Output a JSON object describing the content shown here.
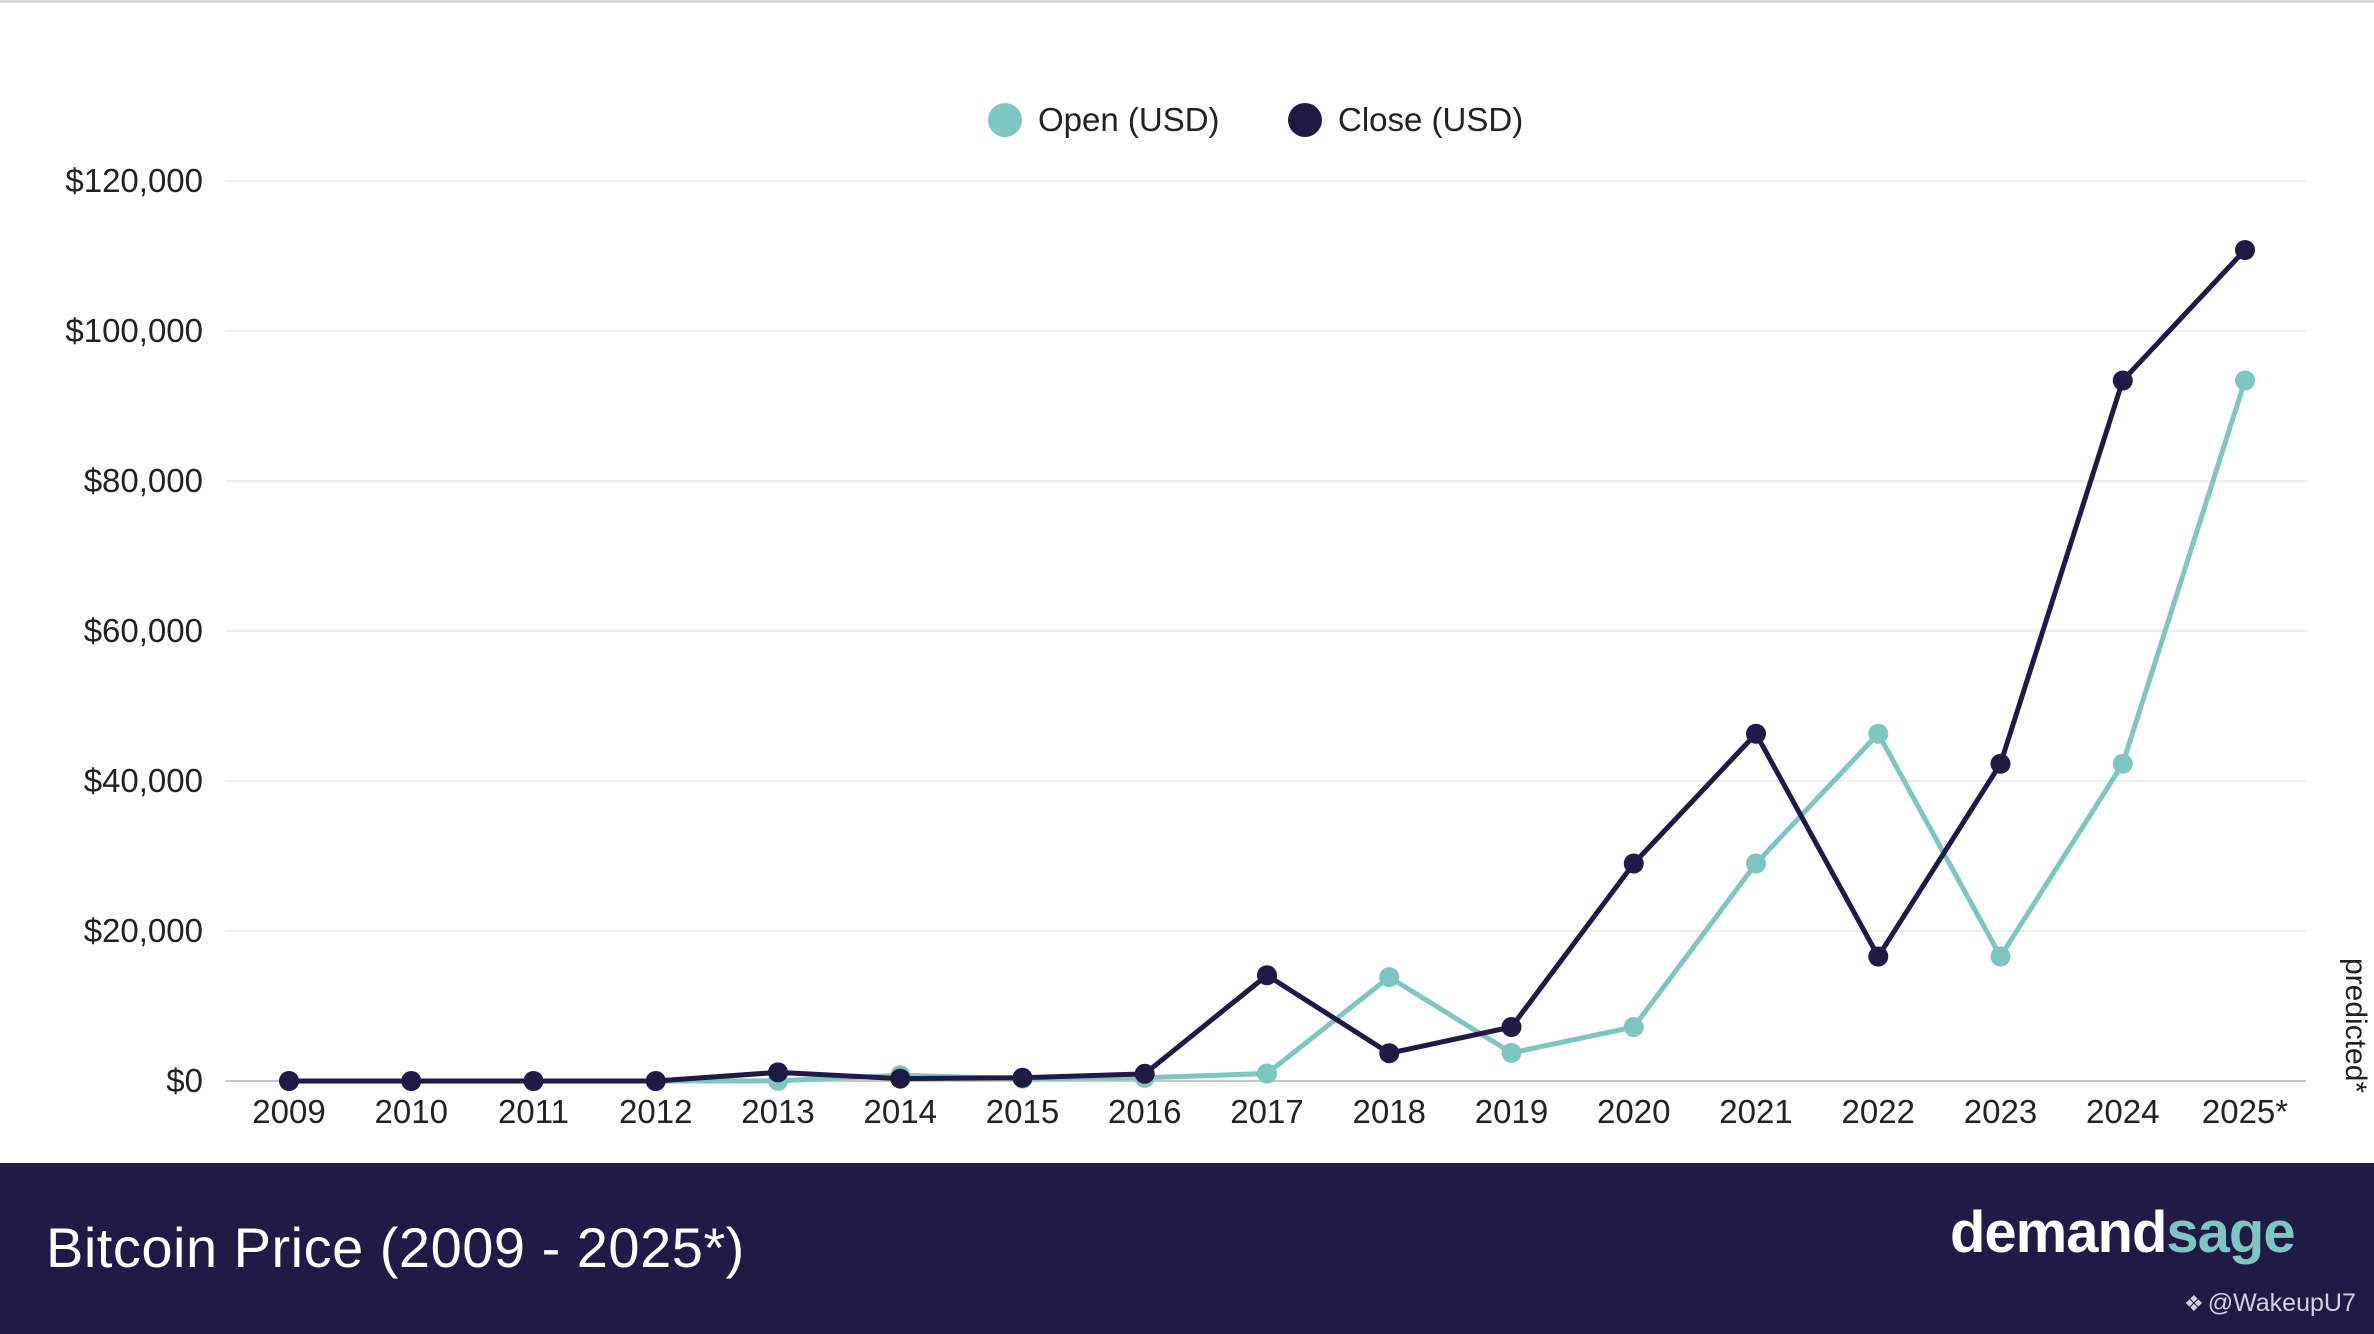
{
  "chart_data": {
    "type": "line",
    "categories": [
      "2009",
      "2010",
      "2011",
      "2012",
      "2013",
      "2014",
      "2015",
      "2016",
      "2017",
      "2018",
      "2019",
      "2020",
      "2021",
      "2022",
      "2023",
      "2024",
      "2025*"
    ],
    "series": [
      {
        "name": "Open (USD)",
        "color": "#7dc6c2",
        "values": [
          0,
          0,
          0,
          5,
          13,
          770,
          315,
          434,
          1000,
          13850,
          3750,
          7200,
          29000,
          46300,
          16600,
          42300,
          93400
        ]
      },
      {
        "name": "Close (USD)",
        "color": "#211a47",
        "values": [
          0,
          0,
          0,
          0,
          1150,
          320,
          430,
          960,
          14100,
          3700,
          7200,
          29000,
          46300,
          16600,
          42300,
          93400,
          110800
        ]
      }
    ],
    "ylim": [
      0,
      120000
    ],
    "yticks": [
      0,
      20000,
      40000,
      60000,
      80000,
      100000,
      120000
    ],
    "ytick_labels": [
      "$0",
      "$20,000",
      "$40,000",
      "$60,000",
      "$80,000",
      "$100,000",
      "$120,000"
    ],
    "legend_position": "top-center",
    "grid": true,
    "side_note": "predicted*"
  },
  "footer": {
    "title": "Bitcoin Price (2009 - 2025*)",
    "brand_part1": "demand",
    "brand_part2": "sage",
    "watermark_icon": "binance-diamond-icon",
    "watermark": "@WakeupU7"
  }
}
